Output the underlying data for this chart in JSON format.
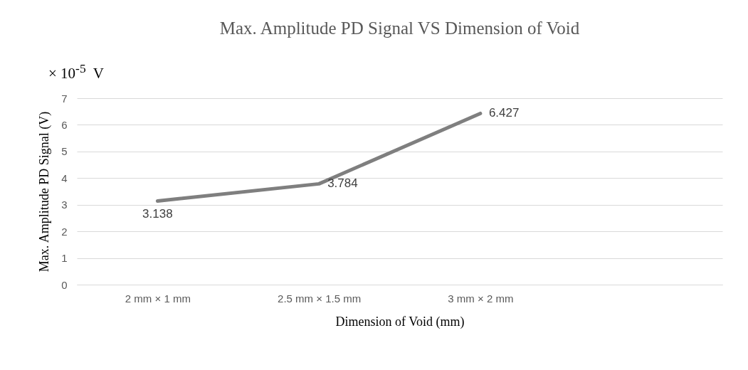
{
  "chart_data": {
    "type": "line",
    "title": "Max. Amplitude PD Signal VS Dimension of Void",
    "xlabel": "Dimension of Void (mm)",
    "ylabel": "Max. Amplitude PD Signal (V)",
    "annotations": [
      "× 10$^{-5}$  V"
    ],
    "categories": [
      "2 mm × 1 mm",
      "2.5 mm × 1.5 mm",
      "3 mm × 2 mm",
      null
    ],
    "series": [
      {
        "color": "#7f7f7f",
        "values": [
          3.138,
          3.784,
          6.427,
          null
        ]
      }
    ],
    "ylim": [
      0,
      7
    ],
    "yticks": [
      0,
      1,
      2,
      3,
      4,
      5,
      6,
      7
    ],
    "grid": "y",
    "data_labels": true,
    "marker": "none",
    "line_style": "solid"
  }
}
